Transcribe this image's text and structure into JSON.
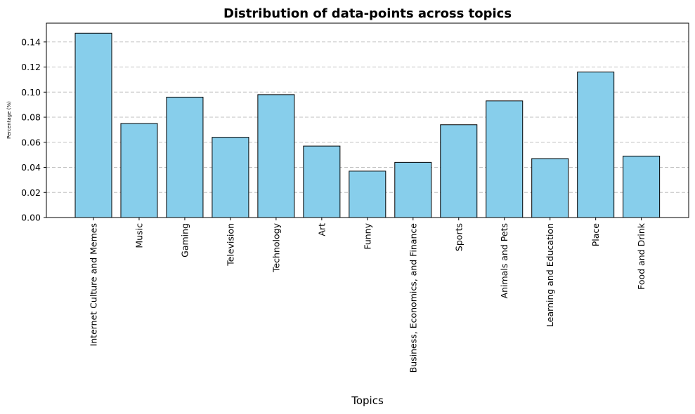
{
  "chart_data": {
    "type": "bar",
    "title": "Distribution of data-points across topics",
    "xlabel": "Topics",
    "ylabel": "Percentage (%)",
    "categories": [
      "Internet Culture and Memes",
      "Music",
      "Gaming",
      "Television",
      "Technology",
      "Art",
      "Funny",
      "Business, Economics, and Finance",
      "Sports",
      "Animals and Pets",
      "Learning and Education",
      "Place",
      "Food and Drink"
    ],
    "values": [
      0.147,
      0.075,
      0.096,
      0.064,
      0.098,
      0.057,
      0.037,
      0.044,
      0.074,
      0.093,
      0.047,
      0.116,
      0.049
    ],
    "ylim": [
      0,
      0.155
    ],
    "yticks": [
      "0.00",
      "0.02",
      "0.04",
      "0.06",
      "0.08",
      "0.10",
      "0.12",
      "0.14"
    ],
    "grid": "y-dashed",
    "bar_color": "#87CEEB",
    "edge_color": "#000000",
    "grid_color": "#c0c0c0"
  }
}
